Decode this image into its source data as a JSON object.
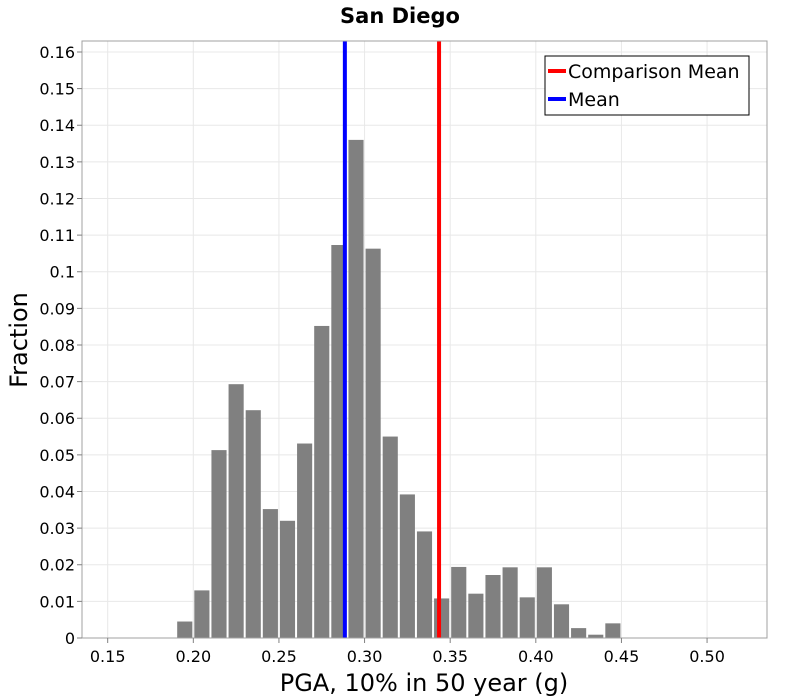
{
  "chart_data": {
    "type": "bar",
    "title": "San Diego",
    "xlabel": "PGA, 10% in 50 year (g)",
    "ylabel": "Fraction",
    "xlim": [
      0.135,
      0.535
    ],
    "ylim": [
      0,
      0.163
    ],
    "xticks": [
      0.15,
      0.2,
      0.25,
      0.3,
      0.35,
      0.4,
      0.45,
      0.5
    ],
    "xtick_labels": [
      "0.15",
      "0.20",
      "0.25",
      "0.30",
      "0.35",
      "0.40",
      "0.45",
      "0.50"
    ],
    "yticks": [
      0,
      0.01,
      0.02,
      0.03,
      0.04,
      0.05,
      0.06,
      0.07,
      0.08,
      0.09,
      0.1,
      0.11,
      0.12,
      0.13,
      0.14,
      0.15,
      0.16
    ],
    "ytick_labels": [
      "0",
      "0.01",
      "0.02",
      "0.03",
      "0.04",
      "0.05",
      "0.06",
      "0.07",
      "0.08",
      "0.09",
      "0.1",
      "0.11",
      "0.12",
      "0.13",
      "0.14",
      "0.15",
      "0.16"
    ],
    "grid": true,
    "bin_width": 0.01,
    "bins": [
      {
        "x": 0.195,
        "value": 0.0045
      },
      {
        "x": 0.205,
        "value": 0.013
      },
      {
        "x": 0.215,
        "value": 0.0513
      },
      {
        "x": 0.225,
        "value": 0.0693
      },
      {
        "x": 0.235,
        "value": 0.0622
      },
      {
        "x": 0.245,
        "value": 0.0352
      },
      {
        "x": 0.255,
        "value": 0.032
      },
      {
        "x": 0.265,
        "value": 0.0531
      },
      {
        "x": 0.275,
        "value": 0.0852
      },
      {
        "x": 0.285,
        "value": 0.1073
      },
      {
        "x": 0.295,
        "value": 0.136
      },
      {
        "x": 0.305,
        "value": 0.1063
      },
      {
        "x": 0.315,
        "value": 0.055
      },
      {
        "x": 0.325,
        "value": 0.0392
      },
      {
        "x": 0.335,
        "value": 0.0291
      },
      {
        "x": 0.345,
        "value": 0.0108
      },
      {
        "x": 0.355,
        "value": 0.0194
      },
      {
        "x": 0.365,
        "value": 0.0121
      },
      {
        "x": 0.375,
        "value": 0.0172
      },
      {
        "x": 0.385,
        "value": 0.0193
      },
      {
        "x": 0.395,
        "value": 0.0111
      },
      {
        "x": 0.405,
        "value": 0.0193
      },
      {
        "x": 0.415,
        "value": 0.0092
      },
      {
        "x": 0.425,
        "value": 0.0027
      },
      {
        "x": 0.435,
        "value": 0.0009
      },
      {
        "x": 0.445,
        "value": 0.004
      }
    ],
    "bar_color": "#808080",
    "vlines": [
      {
        "name": "Comparison Mean",
        "x": 0.3435,
        "color": "#ff0000"
      },
      {
        "name": "Mean",
        "x": 0.2885,
        "color": "#0000ff"
      }
    ],
    "legend": {
      "placement": "top-right",
      "entries": [
        {
          "label": "Comparison Mean",
          "color": "#ff0000"
        },
        {
          "label": "Mean",
          "color": "#0000ff"
        }
      ]
    }
  }
}
